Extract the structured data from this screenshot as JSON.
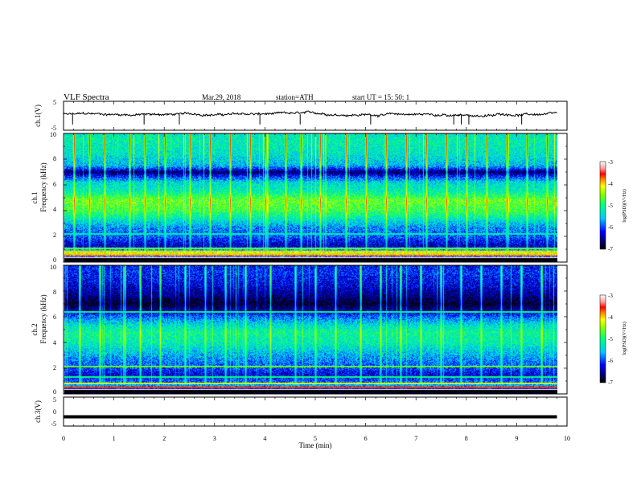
{
  "header": {
    "title": "VLF  Spectra",
    "date": "Mar.29, 2018",
    "station": "station=ATH",
    "start": "start  UT  =    15: 50: 1"
  },
  "chart_data": [
    {
      "type": "line",
      "id": "ch1-waveform",
      "ylabel": "ch.1(V)",
      "ylim": [
        -5,
        5
      ],
      "yticks": [
        "5",
        "-5"
      ],
      "x_range_min": [
        0,
        9.8
      ],
      "baseline_v": 0.5,
      "noise_amplitude_v": 0.6,
      "spike_times_min": [
        0.18,
        1.6,
        2.3,
        3.9,
        4.7,
        6.1,
        7.75,
        7.9,
        8.05,
        9.1
      ],
      "spike_depth_v": -3.0,
      "grid": false
    },
    {
      "type": "heatmap",
      "id": "ch1-spectrogram",
      "ylabel_top": "ch.1",
      "ylabel": "Frequency  (kHz)",
      "ylim_khz": [
        0,
        10
      ],
      "yticks": [
        "10",
        "8",
        "6",
        "4",
        "2",
        "0"
      ],
      "x_range_min": [
        0,
        9.8
      ],
      "colorbar_label": "log(PSD)(V²/Hz)",
      "colorbar_range": [
        -7,
        -3
      ],
      "colorbar_ticks": [
        "-3",
        "-4",
        "-5",
        "-6",
        "-7"
      ],
      "psd_profile_khz": [
        [
          0.0,
          -7.0
        ],
        [
          0.3,
          -6.6
        ],
        [
          0.6,
          -4.2
        ],
        [
          0.9,
          -5.6
        ],
        [
          1.2,
          -6.4
        ],
        [
          1.6,
          -6.2
        ],
        [
          2.0,
          -5.9
        ],
        [
          2.6,
          -5.8
        ],
        [
          3.3,
          -5.3
        ],
        [
          4.0,
          -4.8
        ],
        [
          4.8,
          -4.6
        ],
        [
          5.5,
          -5.2
        ],
        [
          6.2,
          -5.4
        ],
        [
          6.6,
          -6.0
        ],
        [
          7.0,
          -6.7
        ],
        [
          7.5,
          -5.6
        ],
        [
          8.5,
          -5.3
        ],
        [
          9.5,
          -5.2
        ],
        [
          10.0,
          -5.3
        ]
      ],
      "bands_khz": [
        {
          "f": 0.45,
          "psd": -3.4
        },
        {
          "f": 0.75,
          "psd": -4.0
        },
        {
          "f": 1.05,
          "psd": -4.6
        },
        {
          "f": 2.15,
          "psd": -5.2
        }
      ],
      "impulse_times_min": [
        0.2,
        0.5,
        0.8,
        1.3,
        1.6,
        2.0,
        2.5,
        2.9,
        3.3,
        3.7,
        4.0,
        4.4,
        4.7,
        5.1,
        5.6,
        6.0,
        6.4,
        6.8,
        7.2,
        7.6,
        8.0,
        8.4,
        8.8,
        9.2,
        9.6
      ]
    },
    {
      "type": "heatmap",
      "id": "ch2-spectrogram",
      "ylabel_top": "ch.2",
      "ylabel": "Frequency  (kHz)",
      "ylim_khz": [
        0,
        10
      ],
      "yticks": [
        "10",
        "8",
        "6",
        "4",
        "2",
        "0"
      ],
      "x_range_min": [
        0,
        9.8
      ],
      "colorbar_label": "log(PSD)(V²/Hz)",
      "colorbar_range": [
        -7,
        -3
      ],
      "colorbar_ticks": [
        "-3",
        "-4",
        "-5",
        "-6",
        "-7"
      ],
      "psd_profile_khz": [
        [
          0.0,
          -7.0
        ],
        [
          0.3,
          -6.6
        ],
        [
          0.6,
          -5.6
        ],
        [
          1.0,
          -6.0
        ],
        [
          1.5,
          -6.3
        ],
        [
          2.0,
          -6.0
        ],
        [
          2.6,
          -5.8
        ],
        [
          3.3,
          -5.5
        ],
        [
          4.0,
          -5.2
        ],
        [
          4.8,
          -5.1
        ],
        [
          5.4,
          -5.4
        ],
        [
          6.0,
          -5.9
        ],
        [
          6.5,
          -6.5
        ],
        [
          7.0,
          -6.9
        ],
        [
          7.6,
          -6.6
        ],
        [
          8.5,
          -6.3
        ],
        [
          9.5,
          -6.1
        ],
        [
          10.0,
          -6.2
        ]
      ],
      "bands_khz": [
        {
          "f": 0.45,
          "psd": -3.6
        },
        {
          "f": 0.8,
          "psd": -4.2
        },
        {
          "f": 1.3,
          "psd": -5.0
        },
        {
          "f": 2.1,
          "psd": -4.6
        },
        {
          "f": 6.4,
          "psd": -5.0
        }
      ],
      "impulse_times_min": [
        0.3,
        0.7,
        1.2,
        1.5,
        1.9,
        2.4,
        2.8,
        3.2,
        3.6,
        4.1,
        4.6,
        5.0,
        5.4,
        5.9,
        6.3,
        6.7,
        7.1,
        7.5,
        7.9,
        8.3,
        8.7,
        9.1,
        9.5
      ]
    },
    {
      "type": "line",
      "id": "ch3-waveform",
      "ylabel": "ch.3(V)",
      "ylim": [
        -5,
        5
      ],
      "yticks": [
        "5",
        "0",
        "-5"
      ],
      "x_range_min": [
        0,
        9.8
      ],
      "baseline_v": -1.8,
      "xlabel": "Time  (min)",
      "xlim": [
        0,
        10
      ],
      "xticks": [
        "0",
        "1",
        "2",
        "3",
        "4",
        "5",
        "6",
        "7",
        "8",
        "9",
        "10"
      ],
      "grid": false
    }
  ]
}
